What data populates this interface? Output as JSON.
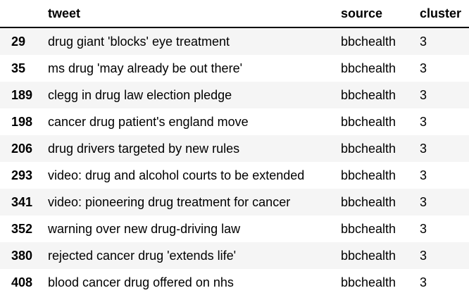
{
  "table": {
    "columns": {
      "index": "",
      "tweet": "tweet",
      "source": "source",
      "cluster": "cluster"
    },
    "rows": [
      {
        "index": "29",
        "tweet": "drug giant 'blocks' eye treatment",
        "source": "bbchealth",
        "cluster": "3"
      },
      {
        "index": "35",
        "tweet": "ms drug 'may already be out there'",
        "source": "bbchealth",
        "cluster": "3"
      },
      {
        "index": "189",
        "tweet": "clegg in drug law election pledge",
        "source": "bbchealth",
        "cluster": "3"
      },
      {
        "index": "198",
        "tweet": "cancer drug patient's england move",
        "source": "bbchealth",
        "cluster": "3"
      },
      {
        "index": "206",
        "tweet": "drug drivers targeted by new rules",
        "source": "bbchealth",
        "cluster": "3"
      },
      {
        "index": "293",
        "tweet": "video: drug and alcohol courts to be extended",
        "source": "bbchealth",
        "cluster": "3"
      },
      {
        "index": "341",
        "tweet": "video: pioneering drug treatment for cancer",
        "source": "bbchealth",
        "cluster": "3"
      },
      {
        "index": "352",
        "tweet": "warning over new drug-driving law",
        "source": "bbchealth",
        "cluster": "3"
      },
      {
        "index": "380",
        "tweet": "rejected cancer drug 'extends life'",
        "source": "bbchealth",
        "cluster": "3"
      },
      {
        "index": "408",
        "tweet": "blood cancer drug offered on nhs",
        "source": "bbchealth",
        "cluster": "3"
      }
    ]
  }
}
